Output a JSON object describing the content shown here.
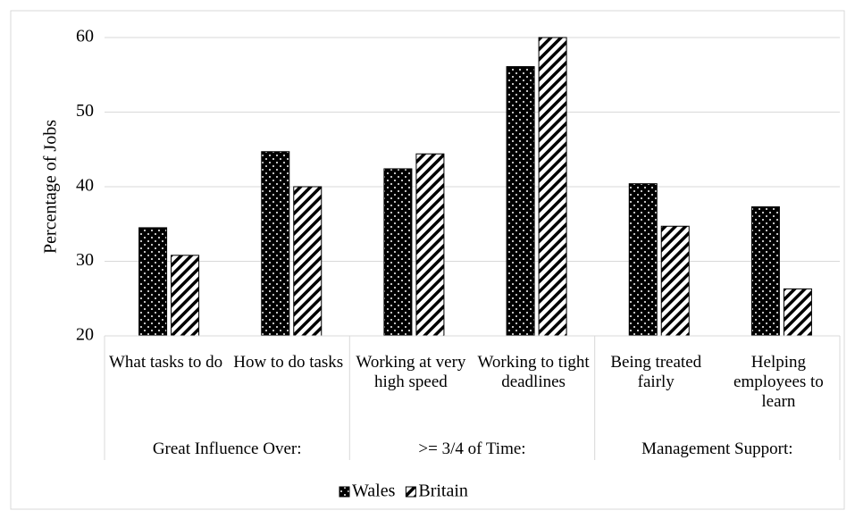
{
  "chart_data": {
    "type": "bar",
    "y_label": "Percentage of Jobs",
    "groups": [
      {
        "name": "Great Influence Over:",
        "categories": [
          "What tasks to do",
          "How to do tasks"
        ]
      },
      {
        "name": ">= 3/4 of Time:",
        "categories": [
          "Working at very high speed",
          "Working to tight deadlines"
        ]
      },
      {
        "name": "Management Support:",
        "categories": [
          "Being treated fairly",
          "Helping employees to learn"
        ]
      }
    ],
    "series": [
      {
        "name": "Wales",
        "color": "#000000",
        "pattern": "dots",
        "values": [
          34.5,
          44.7,
          42.4,
          56.1,
          40.4,
          37.3
        ]
      },
      {
        "name": "Britain",
        "color": "#000000",
        "pattern": "stripes",
        "values": [
          30.8,
          40.0,
          44.4,
          60.0,
          34.7,
          26.3
        ]
      }
    ],
    "ylim": [
      20,
      60
    ],
    "yticks": [
      20,
      30,
      40,
      50,
      60
    ],
    "grid": true,
    "legend": "bottom"
  }
}
